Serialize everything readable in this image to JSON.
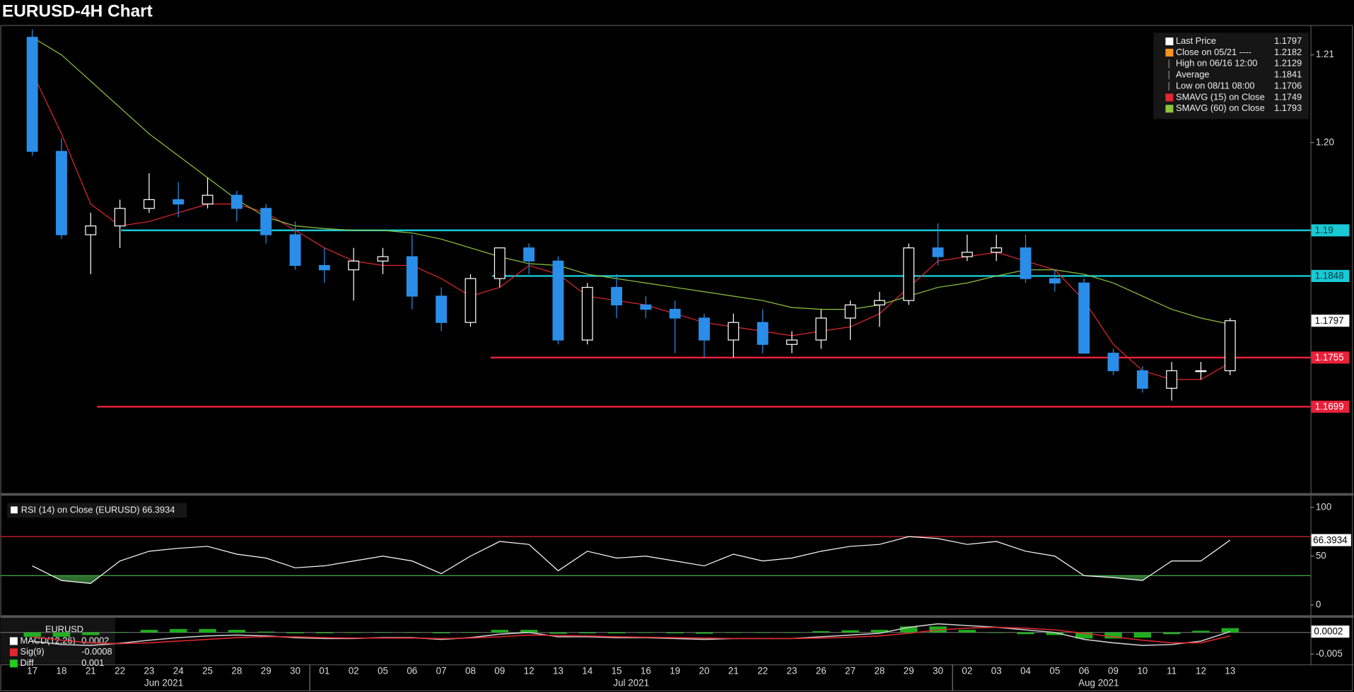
{
  "chart_data": [
    {
      "type": "candlestick",
      "title": "EURUSD-4H Chart",
      "categories": [
        "17",
        "18",
        "21",
        "22",
        "23",
        "24",
        "25",
        "28",
        "29",
        "30",
        "01",
        "02",
        "05",
        "06",
        "07",
        "08",
        "09",
        "12",
        "13",
        "14",
        "15",
        "16",
        "19",
        "20",
        "21",
        "22",
        "23",
        "26",
        "27",
        "28",
        "29",
        "30",
        "02",
        "03",
        "04",
        "05",
        "06",
        "09",
        "10",
        "11",
        "12",
        "13"
      ],
      "months": [
        "Jun 2021",
        "Jul 2021",
        "Aug 2021"
      ],
      "open": [
        1.212,
        1.199,
        1.1895,
        1.1905,
        1.1925,
        1.1935,
        1.193,
        1.194,
        1.1925,
        1.1895,
        1.186,
        1.1855,
        1.1865,
        1.187,
        1.1825,
        1.1795,
        1.1845,
        1.188,
        1.1865,
        1.1775,
        1.1835,
        1.1815,
        1.181,
        1.18,
        1.1775,
        1.1795,
        1.177,
        1.1775,
        1.18,
        1.1815,
        1.182,
        1.188,
        1.187,
        1.1875,
        1.188,
        1.1845,
        1.184,
        1.176,
        1.174,
        1.172,
        1.174,
        1.174
      ],
      "high": [
        1.2129,
        1.2005,
        1.192,
        1.1935,
        1.1965,
        1.1955,
        1.196,
        1.1945,
        1.193,
        1.191,
        1.188,
        1.188,
        1.188,
        1.1895,
        1.1835,
        1.185,
        1.188,
        1.1885,
        1.187,
        1.184,
        1.185,
        1.1825,
        1.182,
        1.1805,
        1.1805,
        1.181,
        1.1785,
        1.181,
        1.182,
        1.183,
        1.1885,
        1.1908,
        1.1895,
        1.1895,
        1.1895,
        1.1855,
        1.1845,
        1.1765,
        1.1745,
        1.175,
        1.175,
        1.18
      ],
      "low": [
        1.1985,
        1.189,
        1.185,
        1.188,
        1.192,
        1.1915,
        1.1925,
        1.191,
        1.1885,
        1.1855,
        1.184,
        1.182,
        1.185,
        1.181,
        1.1785,
        1.179,
        1.1835,
        1.185,
        1.177,
        1.177,
        1.18,
        1.18,
        1.176,
        1.1755,
        1.1755,
        1.176,
        1.176,
        1.1765,
        1.1775,
        1.179,
        1.1815,
        1.186,
        1.1865,
        1.1865,
        1.184,
        1.183,
        1.176,
        1.1735,
        1.1715,
        1.1706,
        1.173,
        1.1735
      ],
      "close": [
        1.199,
        1.1895,
        1.1905,
        1.1925,
        1.1935,
        1.193,
        1.194,
        1.1925,
        1.1895,
        1.186,
        1.1855,
        1.1865,
        1.187,
        1.1825,
        1.1795,
        1.1845,
        1.188,
        1.1865,
        1.1775,
        1.1835,
        1.1815,
        1.181,
        1.18,
        1.1775,
        1.1795,
        1.177,
        1.1775,
        1.18,
        1.1815,
        1.182,
        1.188,
        1.187,
        1.1875,
        1.188,
        1.1845,
        1.184,
        1.176,
        1.174,
        1.172,
        1.174,
        1.174,
        1.1797
      ],
      "up_color": "#ffffff",
      "down_color": "#2a8ee8",
      "series": [
        {
          "color": "#e0282e",
          "values": [
            1.208,
            1.201,
            1.193,
            1.1905,
            1.191,
            1.192,
            1.193,
            1.193,
            1.192,
            1.19,
            1.188,
            1.1865,
            1.186,
            1.186,
            1.1845,
            1.1825,
            1.1835,
            1.186,
            1.185,
            1.1825,
            1.182,
            1.1815,
            1.1805,
            1.1795,
            1.179,
            1.1785,
            1.178,
            1.1785,
            1.179,
            1.1805,
            1.1835,
            1.1865,
            1.187,
            1.1875,
            1.1865,
            1.1855,
            1.182,
            1.177,
            1.174,
            1.173,
            1.173,
            1.1749
          ]
        },
        {
          "color": "#8cc63f",
          "values": [
            1.212,
            1.21,
            1.207,
            1.204,
            1.201,
            1.1985,
            1.196,
            1.1935,
            1.1915,
            1.1905,
            1.1902,
            1.19,
            1.19,
            1.1897,
            1.189,
            1.188,
            1.187,
            1.1862,
            1.186,
            1.185,
            1.1845,
            1.184,
            1.1835,
            1.183,
            1.1825,
            1.182,
            1.1812,
            1.181,
            1.181,
            1.1815,
            1.1825,
            1.1835,
            1.184,
            1.1848,
            1.1855,
            1.1855,
            1.185,
            1.184,
            1.1825,
            1.181,
            1.18,
            1.1793
          ]
        }
      ],
      "levels": [
        {
          "value": 1.19,
          "color": "#19c9d4"
        },
        {
          "value": 1.1848,
          "color": "#19c9d4"
        },
        {
          "value": 1.1755,
          "color": "#e8203a"
        },
        {
          "value": 1.1699,
          "color": "#e8203a"
        }
      ],
      "legend": [
        {
          "label": "Last Price",
          "value": 1.1797,
          "color": "#ffffff"
        },
        {
          "label": "Close on 05/21 ----",
          "value": 1.2182,
          "color": "#f7941d"
        },
        {
          "label": "High on 06/16 12:00",
          "value": 1.2129,
          "color": "#888888"
        },
        {
          "label": "Average",
          "value": 1.1841,
          "color": "#888888"
        },
        {
          "label": "Low on 08/11 08:00",
          "value": 1.1706,
          "color": "#888888"
        },
        {
          "label": "SMAVG (15)  on Close",
          "value": 1.1749,
          "color": "#e0282e"
        },
        {
          "label": "SMAVG (60)  on Close",
          "value": 1.1793,
          "color": "#8cc63f"
        }
      ],
      "ylim": [
        1.1602,
        1.2133
      ],
      "yticks": [
        {
          "value": 1.19,
          "label": "1.19"
        },
        {
          "value": 1.2,
          "label": "1.20"
        },
        {
          "value": 1.21,
          "label": "1.21"
        }
      ]
    },
    {
      "type": "line",
      "label": "RSI (14)  on Close (EURUSD)",
      "color": "#ffffff",
      "values": [
        40,
        25,
        22,
        45,
        55,
        58,
        60,
        52,
        48,
        38,
        40,
        45,
        50,
        45,
        32,
        50,
        65,
        62,
        35,
        55,
        48,
        50,
        45,
        40,
        52,
        45,
        48,
        55,
        60,
        62,
        70,
        68,
        62,
        65,
        55,
        50,
        30,
        28,
        25,
        45,
        45,
        66.3934
      ],
      "levels": [
        {
          "value": 70,
          "color": "#d0282e"
        },
        {
          "value": 30,
          "color": "#3cb043"
        }
      ],
      "fill_colors": [
        "#7a1a1a",
        "#2f6b2f"
      ],
      "ylim": [
        -9.7,
        109.7
      ],
      "yticks": [
        0,
        50,
        100
      ]
    },
    {
      "type": "macd",
      "title": "EURUSD",
      "series": [
        {
          "name": "MACD(12,26)",
          "color": "#cccccc",
          "values": [
            -0.002,
            -0.0028,
            -0.003,
            -0.0025,
            -0.0018,
            -0.0012,
            -0.0008,
            -0.0006,
            -0.0008,
            -0.0012,
            -0.0014,
            -0.0014,
            -0.0012,
            -0.0012,
            -0.0016,
            -0.0012,
            -0.0004,
            0.0,
            -0.001,
            -0.001,
            -0.0012,
            -0.0012,
            -0.0014,
            -0.0016,
            -0.0014,
            -0.0014,
            -0.0014,
            -0.001,
            -0.0006,
            -0.0002,
            0.0012,
            0.002,
            0.0016,
            0.0012,
            0.0006,
            0.0,
            -0.0016,
            -0.0024,
            -0.003,
            -0.0028,
            -0.002,
            0.0002
          ]
        },
        {
          "name": "Sig(9)",
          "color": "#e0282e",
          "values": [
            -0.001,
            -0.0018,
            -0.0024,
            -0.0026,
            -0.0024,
            -0.002,
            -0.0016,
            -0.0012,
            -0.001,
            -0.001,
            -0.0012,
            -0.0013,
            -0.0013,
            -0.0013,
            -0.0014,
            -0.0013,
            -0.001,
            -0.0006,
            -0.0007,
            -0.0008,
            -0.001,
            -0.0011,
            -0.0012,
            -0.0013,
            -0.0014,
            -0.0014,
            -0.0014,
            -0.0013,
            -0.0011,
            -0.0008,
            -0.0002,
            0.0006,
            0.001,
            0.0012,
            0.001,
            0.0006,
            -0.0002,
            -0.001,
            -0.0018,
            -0.0024,
            -0.0024,
            -0.0008
          ]
        },
        {
          "name": "Diff",
          "color": "#22cc22",
          "values": [
            -0.001,
            -0.001,
            -0.0006,
            0.0001,
            0.0006,
            0.0008,
            0.0008,
            0.0006,
            0.0002,
            -0.0002,
            -0.0002,
            -0.0001,
            0.0001,
            0.0001,
            -0.0002,
            0.0001,
            0.0006,
            0.0006,
            -0.0003,
            -0.0002,
            -0.0002,
            -0.0001,
            -0.0002,
            -0.0003,
            0.0,
            0.0,
            0.0,
            0.0003,
            0.0005,
            0.0006,
            0.0014,
            0.0014,
            0.0006,
            0.0,
            -0.0004,
            -0.0006,
            -0.0014,
            -0.0014,
            -0.0012,
            -0.0004,
            0.0004,
            0.001
          ]
        }
      ],
      "ylim": [
        -0.0074,
        0.0034
      ],
      "yticks": [
        {
          "value": -0.005,
          "label": "-0.005"
        }
      ]
    }
  ]
}
